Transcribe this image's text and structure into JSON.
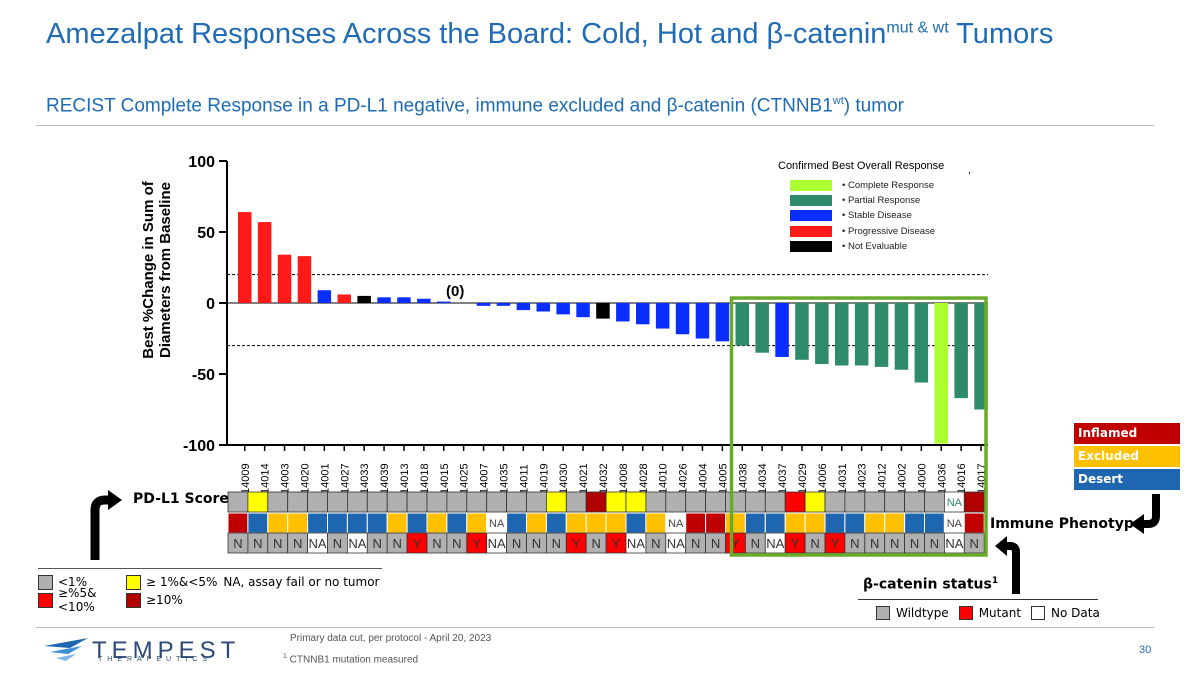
{
  "header": {
    "title_main": "Amezalpat Responses Across the Board: Cold, Hot and β-catenin",
    "title_sup": "mut & wt",
    "title_end": " Tumors",
    "subtitle_main": "RECIST Complete Response in a PD-L1 negative, immune excluded and β-catenin (CTNNB1",
    "subtitle_sup": "wt",
    "subtitle_end": ") tumor"
  },
  "colors": {
    "CR": "#adff2f",
    "PR": "#2e8b6a",
    "SD": "#0a2eff",
    "PD": "#ff1a1a",
    "NE": "#000000",
    "highlight": "#6aaa2a",
    "pd_lt1": "#b0b0b0",
    "pd_1to5": "#ffff00",
    "pd_5to10": "#ff0000",
    "pd_ge10": "#b00000",
    "inflamed": "#c00000",
    "excluded": "#ffc000",
    "desert": "#1f66b0",
    "bc_wildtype": "#b0b0b0",
    "bc_mutant": "#ff0000",
    "bc_nodata": "#ffffff"
  },
  "chart_data": {
    "type": "bar",
    "ylabel": "Best  %Change in Sum of Diameters from Baseline",
    "ylim": [
      -100,
      100
    ],
    "yticks": [
      100,
      50,
      0,
      -50,
      -100
    ],
    "ytick_labels": [
      "100",
      "50",
      "0",
      "-50",
      "-100"
    ],
    "reference_lines": [
      20,
      -30
    ],
    "zero_annotation": "(0)",
    "categories": [
      "14009",
      "14014",
      "14003",
      "14020",
      "14001",
      "14027",
      "14033",
      "14039",
      "14013",
      "14018",
      "14015",
      "14025",
      "14007",
      "14035",
      "14011",
      "14019",
      "14030",
      "14021",
      "14032",
      "14008",
      "14028",
      "14010",
      "14026",
      "14004",
      "14005",
      "14038",
      "14034",
      "14037",
      "14029",
      "14006",
      "14031",
      "14023",
      "14012",
      "14002",
      "14000",
      "14036",
      "14016",
      "14017"
    ],
    "values": [
      64,
      57,
      34,
      33,
      9,
      6,
      5,
      4,
      4,
      3,
      1,
      0,
      -2,
      -2,
      -5,
      -6,
      -8,
      -10,
      -11,
      -13,
      -15,
      -18,
      -22,
      -25,
      -27,
      -30,
      -35,
      -38,
      -40,
      -43,
      -44,
      -44,
      -45,
      -47,
      -56,
      -99,
      -67,
      -75
    ],
    "response": [
      "PD",
      "PD",
      "PD",
      "PD",
      "SD",
      "PD",
      "NE",
      "SD",
      "SD",
      "SD",
      "SD",
      "SD",
      "SD",
      "SD",
      "SD",
      "SD",
      "SD",
      "SD",
      "NE",
      "SD",
      "SD",
      "SD",
      "SD",
      "SD",
      "SD",
      "PR",
      "PR",
      "SD",
      "PR",
      "PR",
      "PR",
      "PR",
      "PR",
      "PR",
      "PR",
      "CR",
      "PR",
      "PR"
    ],
    "legend_title": "Confirmed Best Overall Response",
    "legend": [
      {
        "key": "CR",
        "label": "• Complete Response"
      },
      {
        "key": "PR",
        "label": "• Partial Response"
      },
      {
        "key": "SD",
        "label": "• Stable Disease"
      },
      {
        "key": "PD",
        "label": "• Progressive Disease"
      },
      {
        "key": "NE",
        "label": "• Not Evaluable"
      }
    ],
    "pdl1_score": [
      "gr",
      "ye",
      "gr",
      "gr",
      "gr",
      "gr",
      "gr",
      "gr",
      "gr",
      "gr",
      "gr",
      "gr",
      "gr",
      "gr",
      "gr",
      "gr",
      "ye",
      "gr",
      "dr",
      "ye",
      "ye",
      "gr",
      "gr",
      "gr",
      "gr",
      "gr",
      "gr",
      "gr",
      "rd",
      "ye",
      "gr",
      "gr",
      "gr",
      "gr",
      "gr",
      "gr",
      "NA",
      "dr"
    ],
    "immune_phenotype": [
      "rd",
      "bl",
      "or",
      "or",
      "bl",
      "bl",
      "bl",
      "bl",
      "or",
      "bl",
      "or",
      "bl",
      "or",
      "NA",
      "bl",
      "or",
      "bl",
      "or",
      "or",
      "or",
      "bl",
      "or",
      "NA",
      "rd",
      "rd",
      "or",
      "bl",
      "bl",
      "or",
      "or",
      "bl",
      "bl",
      "or",
      "or",
      "bl",
      "bl",
      "NA",
      "rd"
    ],
    "beta_catenin": [
      "N",
      "N",
      "N",
      "N",
      "NA",
      "N",
      "NA",
      "N",
      "N",
      "Y",
      "N",
      "N",
      "Y",
      "NA",
      "N",
      "N",
      "N",
      "Y",
      "N",
      "Y",
      "NA",
      "N",
      "NA",
      "N",
      "N",
      "Y",
      "N",
      "NA",
      "Y",
      "N",
      "Y",
      "N",
      "N",
      "N",
      "N",
      "N",
      "NA",
      "N"
    ]
  },
  "annotations": {
    "comma": ",",
    "pdl1_label": "PD-L1 Score",
    "immune_label": "Immune Phenotype",
    "beta_label": "β-catenin status",
    "beta_sup": "1",
    "beta_wildtype": "Wildtype",
    "beta_mutant": "Mutant",
    "beta_nodata": "No Data"
  },
  "phenotype_legend": [
    "Inflamed",
    "Excluded",
    "Desert"
  ],
  "pdl1_legend": {
    "lt1": "<1%",
    "range1to5": "≥ 1%&<5%",
    "na_note": "NA, assay fail or no tumor",
    "range5to10": "≥%5&<10%",
    "ge10": "≥10%"
  },
  "footer": {
    "company": "TEMPEST",
    "company_sub": "THERAPEUTICS",
    "note1": "Primary data cut, per protocol - April 20, 2023",
    "note2_sup": "1",
    "note2": " CTNNB1 mutation measured",
    "page": "30"
  }
}
